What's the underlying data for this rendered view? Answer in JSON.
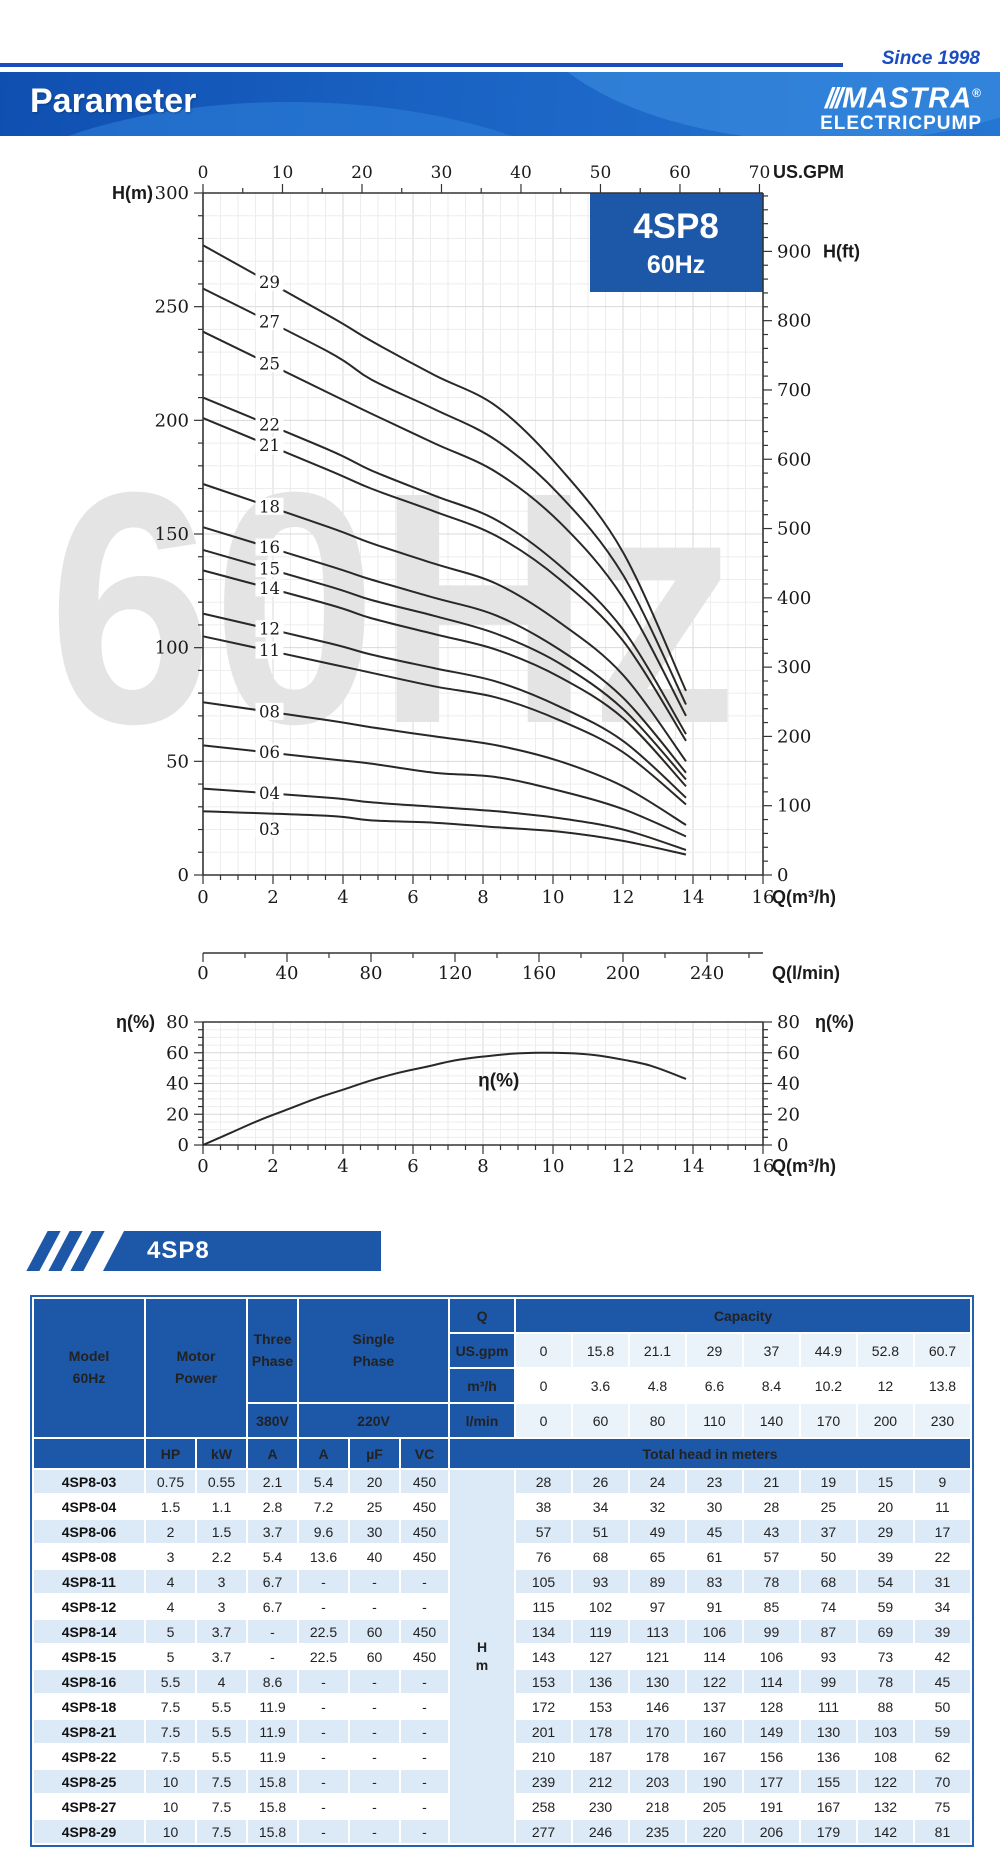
{
  "page": {
    "since": "Since 1998",
    "title": "Parameter",
    "brand": {
      "slashes": "///",
      "name": "MASTRA",
      "registered": "®",
      "sub": "ELECTRICPUMP"
    }
  },
  "badge": {
    "model": "4SP8",
    "freq": "60Hz"
  },
  "watermark": "60Hz",
  "ribbon_label": "4SP8",
  "colors": {
    "blue": "#1d57a8",
    "light_row": "#dce9f6",
    "lighter_row": "#eaf2fa",
    "accent_line": "#1b4dc1",
    "curve": "#2b2725",
    "axis": "#333333",
    "grid_major": "#d9d9d9",
    "grid_minor": "#ededed",
    "watermark": "#e4e4e4",
    "text": "#1a1a1a"
  },
  "chart_data": [
    {
      "id": "head-curves",
      "type": "line",
      "title": "4SP8 60Hz pump head curves",
      "xlabel": "Q(m³/h)",
      "xlabel_secondary": "Q(l/min)",
      "xlabel_top": "US.GPM",
      "ylabel_left": "H(m)",
      "ylabel_right": "H(ft)",
      "xlim": [
        0,
        16
      ],
      "ylim_m": [
        0,
        300
      ],
      "grid": true,
      "x_ticks_m3h": [
        0,
        2,
        4,
        6,
        8,
        10,
        12,
        14,
        16
      ],
      "x_ticks_gpm": [
        0,
        10,
        20,
        30,
        40,
        50,
        60,
        70
      ],
      "x_ticks_lmin": [
        0,
        40,
        80,
        120,
        160,
        200,
        240
      ],
      "y_ticks_m": [
        0,
        50,
        100,
        150,
        200,
        250,
        300
      ],
      "y_ticks_ft": [
        0,
        100,
        200,
        300,
        400,
        500,
        600,
        700,
        800,
        900
      ],
      "x": [
        0,
        3.6,
        4.8,
        6.6,
        8.4,
        10.2,
        12,
        13.8
      ],
      "series": [
        {
          "name": "29",
          "values": [
            277,
            246,
            235,
            220,
            206,
            179,
            142,
            81
          ]
        },
        {
          "name": "27",
          "values": [
            258,
            230,
            218,
            205,
            191,
            167,
            132,
            75
          ]
        },
        {
          "name": "25",
          "values": [
            239,
            212,
            203,
            190,
            177,
            155,
            122,
            70
          ]
        },
        {
          "name": "22",
          "values": [
            210,
            187,
            178,
            167,
            156,
            136,
            108,
            62
          ]
        },
        {
          "name": "21",
          "values": [
            201,
            178,
            170,
            160,
            149,
            130,
            103,
            59
          ]
        },
        {
          "name": "18",
          "values": [
            172,
            153,
            146,
            137,
            128,
            111,
            88,
            50
          ]
        },
        {
          "name": "16",
          "values": [
            153,
            136,
            130,
            122,
            114,
            99,
            78,
            45
          ]
        },
        {
          "name": "15",
          "values": [
            143,
            127,
            121,
            114,
            106,
            93,
            73,
            42
          ]
        },
        {
          "name": "14",
          "values": [
            134,
            119,
            113,
            106,
            99,
            87,
            69,
            39
          ]
        },
        {
          "name": "12",
          "values": [
            115,
            102,
            97,
            91,
            85,
            74,
            59,
            34
          ]
        },
        {
          "name": "11",
          "values": [
            105,
            93,
            89,
            83,
            78,
            68,
            54,
            31
          ]
        },
        {
          "name": "08",
          "values": [
            76,
            68,
            65,
            61,
            57,
            50,
            39,
            22
          ]
        },
        {
          "name": "06",
          "values": [
            57,
            51,
            49,
            45,
            43,
            37,
            29,
            17
          ]
        },
        {
          "name": "04",
          "values": [
            38,
            34,
            32,
            30,
            28,
            25,
            20,
            11
          ]
        },
        {
          "name": "03",
          "values": [
            28,
            26,
            24,
            23,
            21,
            19,
            15,
            9
          ]
        }
      ]
    },
    {
      "id": "efficiency",
      "type": "line",
      "ylabel": "η(%)",
      "xlabel": "Q(m³/h)",
      "annotation": "η(%)",
      "xlim": [
        0,
        16
      ],
      "ylim": [
        0,
        80
      ],
      "grid": true,
      "x_ticks": [
        0,
        2,
        4,
        6,
        8,
        10,
        12,
        14,
        16
      ],
      "y_ticks": [
        0,
        20,
        40,
        60,
        80
      ],
      "x": [
        0,
        0.8,
        1.6,
        2.4,
        3.2,
        4,
        4.8,
        5.6,
        6.4,
        7.2,
        8,
        8.8,
        9.6,
        10.4,
        11.2,
        12,
        12.8,
        13.8
      ],
      "values": [
        0,
        8,
        16,
        23,
        30,
        36,
        42,
        47,
        51,
        55,
        57.5,
        59.3,
        60,
        59.8,
        58.5,
        55.5,
        51.5,
        43
      ]
    }
  ],
  "table": {
    "header": {
      "model_line1": "Model",
      "model_line2": "60Hz",
      "motor_line1": "Motor",
      "motor_line2": "Power",
      "three_line1": "Three",
      "three_line2": "Phase",
      "single_line1": "Single",
      "single_line2": "Phase",
      "v380": "380V",
      "v220": "220V",
      "q": "Q",
      "q_rows": [
        "US.gpm",
        "m³/h",
        "l/min"
      ],
      "capacity": "Capacity",
      "sub": [
        "HP",
        "kW",
        "A",
        "A",
        "µF",
        "VC"
      ],
      "total_head": "Total head in meters",
      "head_unit_line1": "H",
      "head_unit_line2": "m"
    },
    "capacity_rows": {
      "us_gpm": [
        "0",
        "15.8",
        "21.1",
        "29",
        "37",
        "44.9",
        "52.8",
        "60.7"
      ],
      "m3h": [
        "0",
        "3.6",
        "4.8",
        "6.6",
        "8.4",
        "10.2",
        "12",
        "13.8"
      ],
      "lmin": [
        "0",
        "60",
        "80",
        "110",
        "140",
        "170",
        "200",
        "230"
      ]
    },
    "rows": [
      {
        "model": "4SP8-03",
        "hp": "0.75",
        "kw": "0.55",
        "a3": "2.1",
        "a1": "5.4",
        "uf": "20",
        "vc": "450",
        "heads": [
          "28",
          "26",
          "24",
          "23",
          "21",
          "19",
          "15",
          "9"
        ]
      },
      {
        "model": "4SP8-04",
        "hp": "1.5",
        "kw": "1.1",
        "a3": "2.8",
        "a1": "7.2",
        "uf": "25",
        "vc": "450",
        "heads": [
          "38",
          "34",
          "32",
          "30",
          "28",
          "25",
          "20",
          "11"
        ]
      },
      {
        "model": "4SP8-06",
        "hp": "2",
        "kw": "1.5",
        "a3": "3.7",
        "a1": "9.6",
        "uf": "30",
        "vc": "450",
        "heads": [
          "57",
          "51",
          "49",
          "45",
          "43",
          "37",
          "29",
          "17"
        ]
      },
      {
        "model": "4SP8-08",
        "hp": "3",
        "kw": "2.2",
        "a3": "5.4",
        "a1": "13.6",
        "uf": "40",
        "vc": "450",
        "heads": [
          "76",
          "68",
          "65",
          "61",
          "57",
          "50",
          "39",
          "22"
        ]
      },
      {
        "model": "4SP8-11",
        "hp": "4",
        "kw": "3",
        "a3": "6.7",
        "a1": "-",
        "uf": "-",
        "vc": "-",
        "heads": [
          "105",
          "93",
          "89",
          "83",
          "78",
          "68",
          "54",
          "31"
        ]
      },
      {
        "model": "4SP8-12",
        "hp": "4",
        "kw": "3",
        "a3": "6.7",
        "a1": "-",
        "uf": "-",
        "vc": "-",
        "heads": [
          "115",
          "102",
          "97",
          "91",
          "85",
          "74",
          "59",
          "34"
        ]
      },
      {
        "model": "4SP8-14",
        "hp": "5",
        "kw": "3.7",
        "a3": "-",
        "a1": "22.5",
        "uf": "60",
        "vc": "450",
        "heads": [
          "134",
          "119",
          "113",
          "106",
          "99",
          "87",
          "69",
          "39"
        ]
      },
      {
        "model": "4SP8-15",
        "hp": "5",
        "kw": "3.7",
        "a3": "-",
        "a1": "22.5",
        "uf": "60",
        "vc": "450",
        "heads": [
          "143",
          "127",
          "121",
          "114",
          "106",
          "93",
          "73",
          "42"
        ]
      },
      {
        "model": "4SP8-16",
        "hp": "5.5",
        "kw": "4",
        "a3": "8.6",
        "a1": "-",
        "uf": "-",
        "vc": "-",
        "heads": [
          "153",
          "136",
          "130",
          "122",
          "114",
          "99",
          "78",
          "45"
        ]
      },
      {
        "model": "4SP8-18",
        "hp": "7.5",
        "kw": "5.5",
        "a3": "11.9",
        "a1": "-",
        "uf": "-",
        "vc": "-",
        "heads": [
          "172",
          "153",
          "146",
          "137",
          "128",
          "111",
          "88",
          "50"
        ]
      },
      {
        "model": "4SP8-21",
        "hp": "7.5",
        "kw": "5.5",
        "a3": "11.9",
        "a1": "-",
        "uf": "-",
        "vc": "-",
        "heads": [
          "201",
          "178",
          "170",
          "160",
          "149",
          "130",
          "103",
          "59"
        ]
      },
      {
        "model": "4SP8-22",
        "hp": "7.5",
        "kw": "5.5",
        "a3": "11.9",
        "a1": "-",
        "uf": "-",
        "vc": "-",
        "heads": [
          "210",
          "187",
          "178",
          "167",
          "156",
          "136",
          "108",
          "62"
        ]
      },
      {
        "model": "4SP8-25",
        "hp": "10",
        "kw": "7.5",
        "a3": "15.8",
        "a1": "-",
        "uf": "-",
        "vc": "-",
        "heads": [
          "239",
          "212",
          "203",
          "190",
          "177",
          "155",
          "122",
          "70"
        ]
      },
      {
        "model": "4SP8-27",
        "hp": "10",
        "kw": "7.5",
        "a3": "15.8",
        "a1": "-",
        "uf": "-",
        "vc": "-",
        "heads": [
          "258",
          "230",
          "218",
          "205",
          "191",
          "167",
          "132",
          "75"
        ]
      },
      {
        "model": "4SP8-29",
        "hp": "10",
        "kw": "7.5",
        "a3": "15.8",
        "a1": "-",
        "uf": "-",
        "vc": "-",
        "heads": [
          "277",
          "246",
          "235",
          "220",
          "206",
          "179",
          "142",
          "81"
        ]
      }
    ]
  }
}
